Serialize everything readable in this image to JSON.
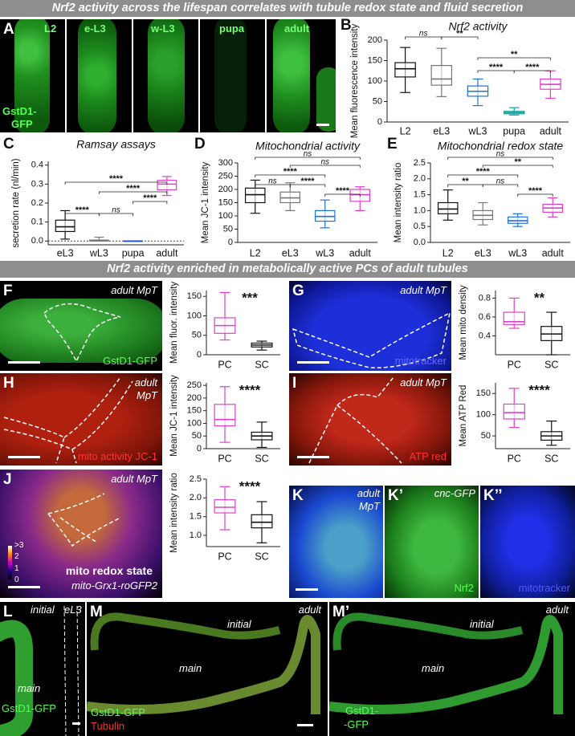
{
  "sections": [
    {
      "title": "Nrf2 activity across the lifespan correlates with tubule redox state and fluid secretion"
    },
    {
      "title": "Nrf2 activity enriched in metabolically active PCs of adult tubules"
    }
  ],
  "image_panels": [
    {
      "label": "A",
      "texts": [
        "L2",
        "e-L3",
        "w-L3",
        "pupa",
        "adult",
        "GstD1-",
        "GFP"
      ]
    },
    {
      "label": "F",
      "texts": [
        "adult MpT",
        "GstD1-GFP"
      ]
    },
    {
      "label": "G",
      "texts": [
        "adult MpT",
        "mitotracker"
      ]
    },
    {
      "label": "H",
      "texts": [
        "adult",
        "MpT",
        "mito activity JC-1"
      ]
    },
    {
      "label": "I",
      "texts": [
        "adult MpT",
        "ATP red"
      ]
    },
    {
      "label": "J",
      "texts": [
        "adult MpT",
        "mito redox state",
        "mito-Grx1-roGFP2",
        ">3",
        "2",
        "1",
        "0"
      ]
    },
    {
      "label": "K",
      "texts": [
        "adult",
        "MpT"
      ]
    },
    {
      "label": "K’",
      "texts": [
        "cnc-GFP",
        "Nrf2"
      ]
    },
    {
      "label": "K’’",
      "texts": [
        "mitotracker"
      ]
    },
    {
      "label": "L",
      "texts": [
        "initial",
        "eL3",
        "main",
        "GstD1-GFP"
      ]
    },
    {
      "label": "M",
      "texts": [
        "initial",
        "adult",
        "main",
        "GstD1-GFP",
        "Tubulin"
      ]
    },
    {
      "label": "M’",
      "texts": [
        "initial",
        "adult",
        "main",
        "GstD1-",
        "-GFP"
      ]
    }
  ],
  "chart_data": [
    {
      "type": "box",
      "label": "B",
      "title": "Nrf2 activity",
      "ylabel": "Mean fluorescence intensity",
      "categories": [
        "L2",
        "eL3",
        "wL3",
        "pupa",
        "adult"
      ],
      "colors": [
        "#111111",
        "#777777",
        "#1e73d6",
        "#17a0a0",
        "#e040c8"
      ],
      "boxes": [
        {
          "min": 72,
          "q1": 110,
          "median": 130,
          "q3": 145,
          "max": 182
        },
        {
          "min": 62,
          "q1": 90,
          "median": 105,
          "q3": 138,
          "max": 180
        },
        {
          "min": 40,
          "q1": 63,
          "median": 75,
          "q3": 88,
          "max": 105
        },
        {
          "min": 17,
          "q1": 20,
          "median": 23,
          "q3": 26,
          "max": 35
        },
        {
          "min": 58,
          "q1": 80,
          "median": 92,
          "q3": 105,
          "max": 125
        }
      ],
      "ylim": [
        0,
        200
      ],
      "yticks": [
        0,
        50,
        100,
        150,
        200
      ],
      "brackets": [
        {
          "label": "ns",
          "from": 0,
          "to": 1
        },
        {
          "label": "**",
          "from": 1,
          "to": 2
        },
        {
          "label": "**",
          "from": 2,
          "to": 4
        },
        {
          "label": "****",
          "from": 2,
          "to": 3
        },
        {
          "label": "****",
          "from": 3,
          "to": 4
        }
      ]
    },
    {
      "type": "box",
      "label": "C",
      "title": "Ramsay assays",
      "ylabel": "secretion rate (nl/min)",
      "categories": [
        "eL3",
        "wL3",
        "pupa",
        "adult"
      ],
      "colors": [
        "#111111",
        "#777777",
        "#1e4fd6",
        "#e040c8"
      ],
      "boxes": [
        {
          "min": 0.01,
          "q1": 0.05,
          "median": 0.075,
          "q3": 0.11,
          "max": 0.16
        },
        {
          "min": 0,
          "q1": 0,
          "median": 0.002,
          "q3": 0.005,
          "max": 0.02
        },
        {
          "min": 0,
          "q1": 0,
          "median": 0,
          "q3": 0,
          "max": 0
        },
        {
          "min": 0.24,
          "q1": 0.27,
          "median": 0.3,
          "q3": 0.32,
          "max": 0.34
        }
      ],
      "ylim": [
        -0.02,
        0.42
      ],
      "yticks": [
        {
          "value": 0,
          "label": "0.0"
        },
        0.1,
        0.2,
        0.3,
        0.4
      ],
      "zero_line": true,
      "brackets": [
        {
          "label": "****",
          "from": 0,
          "to": 3
        },
        {
          "label": "****",
          "from": 1,
          "to": 3
        },
        {
          "label": "****",
          "from": 2,
          "to": 3
        },
        {
          "label": "****",
          "from": 0,
          "to": 1
        },
        {
          "label": "ns",
          "from": 1,
          "to": 2
        }
      ]
    },
    {
      "type": "box",
      "label": "D",
      "title": "Mitochondrial activity",
      "ylabel": "Mean JC-1 intensity",
      "categories": [
        "L2",
        "eL3",
        "wL3",
        "adult"
      ],
      "colors": [
        "#111111",
        "#777777",
        "#1e73d6",
        "#e040c8"
      ],
      "boxes": [
        {
          "min": 110,
          "q1": 150,
          "median": 180,
          "q3": 205,
          "max": 235
        },
        {
          "min": 120,
          "q1": 150,
          "median": 168,
          "q3": 190,
          "max": 225
        },
        {
          "min": 55,
          "q1": 80,
          "median": 98,
          "q3": 120,
          "max": 160
        },
        {
          "min": 120,
          "q1": 155,
          "median": 180,
          "q3": 200,
          "max": 210
        }
      ],
      "ylim": [
        0,
        300
      ],
      "yticks": [
        0,
        50,
        100,
        150,
        200,
        250,
        300
      ],
      "brackets": [
        {
          "label": "ns",
          "from": 0,
          "to": 3
        },
        {
          "label": "ns",
          "from": 1,
          "to": 3
        },
        {
          "label": "****",
          "from": 0,
          "to": 2
        },
        {
          "label": "ns",
          "from": 0,
          "to": 1
        },
        {
          "label": "****",
          "from": 1,
          "to": 2
        },
        {
          "label": "****",
          "from": 2,
          "to": 3
        }
      ]
    },
    {
      "type": "box",
      "label": "E",
      "title": "Mitochondrial redox state",
      "ylabel": "Mean intensity ratio",
      "categories": [
        "L2",
        "eL3",
        "wL3",
        "adult"
      ],
      "colors": [
        "#111111",
        "#777777",
        "#1e73d6",
        "#e040c8"
      ],
      "boxes": [
        {
          "min": 0.7,
          "q1": 0.9,
          "median": 1.05,
          "q3": 1.25,
          "max": 1.65
        },
        {
          "min": 0.55,
          "q1": 0.72,
          "median": 0.85,
          "q3": 1,
          "max": 1.25
        },
        {
          "min": 0.5,
          "q1": 0.6,
          "median": 0.68,
          "q3": 0.8,
          "max": 0.9
        },
        {
          "min": 0.8,
          "q1": 0.95,
          "median": 1.08,
          "q3": 1.2,
          "max": 1.4
        }
      ],
      "ylim": [
        0,
        2.5
      ],
      "yticks": [
        {
          "value": 0,
          "label": "0.0"
        },
        0.5,
        {
          "value": 1,
          "label": "1.0"
        },
        1.5,
        {
          "value": 2,
          "label": "2.0"
        },
        2.5
      ],
      "brackets": [
        {
          "label": "ns",
          "from": 0,
          "to": 3
        },
        {
          "label": "**",
          "from": 1,
          "to": 3
        },
        {
          "label": "****",
          "from": 0,
          "to": 2
        },
        {
          "label": "**",
          "from": 0,
          "to": 1
        },
        {
          "label": "ns",
          "from": 1,
          "to": 2
        },
        {
          "label": "****",
          "from": 2,
          "to": 3
        }
      ]
    },
    {
      "type": "box",
      "ylabel": "Mean fluor. intensity",
      "categories": [
        "PC",
        "SC"
      ],
      "colors": [
        "#e040c8",
        "#111111"
      ],
      "significance": "***",
      "boxes": [
        {
          "min": 38,
          "q1": 55,
          "median": 75,
          "q3": 95,
          "max": 160
        },
        {
          "min": 12,
          "q1": 20,
          "median": 25,
          "q3": 30,
          "max": 35
        }
      ],
      "ylim": [
        0,
        165
      ],
      "yticks": [
        0,
        50,
        100,
        150
      ]
    },
    {
      "type": "box",
      "ylabel": "Mean mito density",
      "categories": [
        "PC",
        "SC"
      ],
      "colors": [
        "#e040c8",
        "#111111"
      ],
      "significance": "**",
      "boxes": [
        {
          "min": 0.48,
          "q1": 0.52,
          "median": 0.55,
          "q3": 0.65,
          "max": 0.8
        },
        {
          "min": 0.2,
          "q1": 0.35,
          "median": 0.42,
          "q3": 0.5,
          "max": 0.65
        }
      ],
      "ylim": [
        0.2,
        0.88
      ],
      "yticks": [
        0.4,
        0.6,
        0.8
      ]
    },
    {
      "type": "box",
      "ylabel": "Mean JC-1 intensity",
      "categories": [
        "PC",
        "SC"
      ],
      "colors": [
        "#e040c8",
        "#111111"
      ],
      "significance": "****",
      "boxes": [
        {
          "min": 25,
          "q1": 90,
          "median": 115,
          "q3": 175,
          "max": 245
        },
        {
          "min": 5,
          "q1": 35,
          "median": 50,
          "q3": 65,
          "max": 105
        }
      ],
      "ylim": [
        0,
        260
      ],
      "yticks": [
        0,
        50,
        100,
        150,
        200,
        250
      ]
    },
    {
      "type": "box",
      "ylabel": "Mean ATP Red",
      "categories": [
        "PC",
        "SC"
      ],
      "colors": [
        "#e040c8",
        "#111111"
      ],
      "significance": "****",
      "boxes": [
        {
          "min": 70,
          "q1": 90,
          "median": 105,
          "q3": 125,
          "max": 162
        },
        {
          "min": 28,
          "q1": 40,
          "median": 50,
          "q3": 60,
          "max": 85
        }
      ],
      "ylim": [
        20,
        175
      ],
      "yticks": [
        50,
        100,
        150
      ]
    },
    {
      "type": "box",
      "ylabel": "Mean intensity ratio",
      "categories": [
        "PC",
        "SC"
      ],
      "colors": [
        "#e040c8",
        "#111111"
      ],
      "significance": "****",
      "boxes": [
        {
          "min": 1.15,
          "q1": 1.6,
          "median": 1.75,
          "q3": 1.95,
          "max": 2.3
        },
        {
          "min": 0.8,
          "q1": 1.2,
          "median": 1.35,
          "q3": 1.55,
          "max": 1.9
        }
      ],
      "ylim": [
        0.7,
        2.5
      ],
      "yticks": [
        {
          "value": 1,
          "label": "1.0"
        },
        1.5,
        {
          "value": 2,
          "label": "2.0"
        },
        2.5
      ]
    }
  ]
}
